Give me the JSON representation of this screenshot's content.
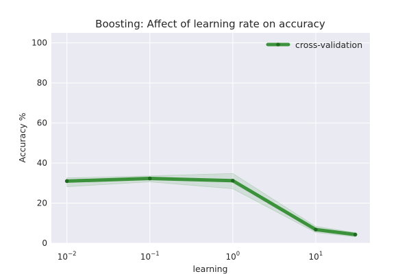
{
  "chart_data": {
    "type": "line",
    "title": "Boosting: Affect of learning rate on accuracy",
    "xlabel": "learning",
    "ylabel": "Accuracy %",
    "xscale": "log",
    "ylim": [
      0,
      105
    ],
    "xlim": [
      0.0065,
      45
    ],
    "grid": true,
    "legend_position": "top-right",
    "x_ticks": [
      {
        "value": 0.01,
        "base": "10",
        "exp": "−2"
      },
      {
        "value": 0.1,
        "base": "10",
        "exp": "−1"
      },
      {
        "value": 1,
        "base": "10",
        "exp": "0"
      },
      {
        "value": 10,
        "base": "10",
        "exp": "1"
      }
    ],
    "y_ticks": [
      {
        "value": 0,
        "label": "0"
      },
      {
        "value": 20,
        "label": "20"
      },
      {
        "value": 40,
        "label": "40"
      },
      {
        "value": 60,
        "label": "60"
      },
      {
        "value": 80,
        "label": "80"
      },
      {
        "value": 100,
        "label": "100"
      }
    ],
    "series": [
      {
        "name": "cross-validation",
        "color": "#2e8b2e",
        "band_color": "#2e8b2e",
        "x": [
          0.01,
          0.1,
          1,
          10,
          30
        ],
        "y": [
          31,
          32.3,
          31.2,
          6.8,
          4.3
        ],
        "y_lower": [
          28.2,
          30.6,
          27.2,
          5.3,
          3.2
        ],
        "y_upper": [
          32.6,
          33.6,
          34.8,
          8.4,
          5.3
        ]
      }
    ]
  }
}
